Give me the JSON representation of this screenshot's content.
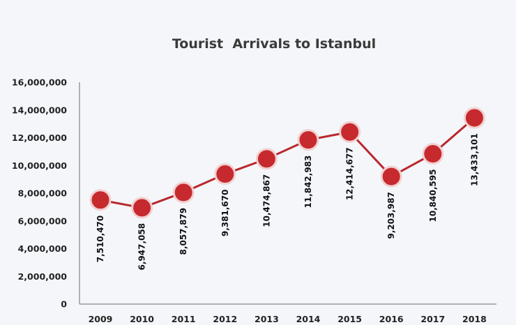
{
  "chart_data": {
    "type": "line",
    "title": "Tourist  Arrivals to Istanbul",
    "xlabel": "",
    "ylabel": "",
    "categories": [
      "2009",
      "2010",
      "2011",
      "2012",
      "2013",
      "2014",
      "2015",
      "2016",
      "2017",
      "2018"
    ],
    "values": [
      7510470,
      6947058,
      8057879,
      9381670,
      10474867,
      11842983,
      12414677,
      9203987,
      10840595,
      13433101
    ],
    "data_labels": [
      "7,510,470",
      "6,947,058",
      "8,057,879",
      "9,381,670",
      "10,474,867",
      "11,842,983",
      "12,414,677",
      "9,203,987",
      "10,840,595",
      "13,433,101"
    ],
    "ylim": [
      0,
      16000000
    ],
    "yticks": [
      0,
      2000000,
      4000000,
      6000000,
      8000000,
      10000000,
      12000000,
      14000000,
      16000000
    ],
    "ytick_labels": [
      "0",
      "2,000,000",
      "4,000,000",
      "6,000,000",
      "8,000,000",
      "10,000,000",
      "12,000,000",
      "14,000,000",
      "16,000,000"
    ],
    "grid": false,
    "legend": "none",
    "colors": {
      "line": "#b9282c",
      "marker_fill": "#c62a2e",
      "marker_stroke": "#f2d0d0",
      "axis": "#9a9a9a",
      "text": "#222222"
    }
  }
}
